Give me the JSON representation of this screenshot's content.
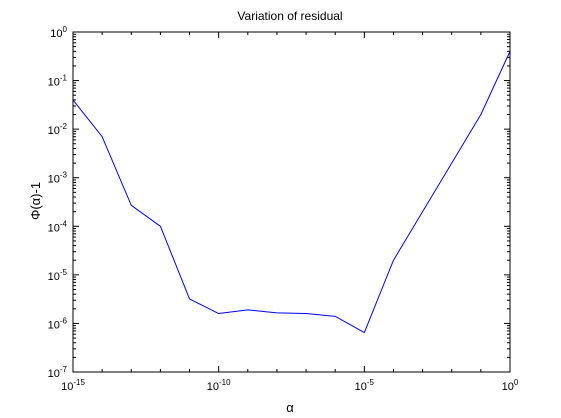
{
  "colors": {
    "background": "#ffffff",
    "axes": "#000000",
    "series_line": "#0000ff"
  },
  "chart_data": {
    "type": "line",
    "title": "Variation of residual",
    "xlabel": "α",
    "ylabel": "Φ(α)-1",
    "xscale": "log",
    "yscale": "log",
    "xlim": [
      1e-15,
      1
    ],
    "ylim": [
      1e-07,
      1
    ],
    "grid": false,
    "legend": "none",
    "x_ticks": [
      {
        "base": "10",
        "exp": "-15"
      },
      {
        "base": "10",
        "exp": "-10"
      },
      {
        "base": "10",
        "exp": "-5"
      },
      {
        "base": "10",
        "exp": "0"
      }
    ],
    "y_ticks": [
      {
        "base": "10",
        "exp": "-7"
      },
      {
        "base": "10",
        "exp": "-6"
      },
      {
        "base": "10",
        "exp": "-5"
      },
      {
        "base": "10",
        "exp": "-4"
      },
      {
        "base": "10",
        "exp": "-3"
      },
      {
        "base": "10",
        "exp": "-2"
      },
      {
        "base": "10",
        "exp": "-1"
      },
      {
        "base": "10",
        "exp": "0"
      }
    ],
    "series": [
      {
        "color": "#0000ff",
        "x": [
          1e-15,
          1e-14,
          1e-13,
          1e-12,
          1e-11,
          1e-10,
          1e-09,
          1e-08,
          1e-07,
          1e-06,
          1e-05,
          0.0001,
          0.001,
          0.01,
          0.1,
          1
        ],
        "y": [
          0.04,
          0.007,
          0.00027,
          0.0001,
          3.2e-06,
          1.6e-06,
          1.9e-06,
          1.65e-06,
          1.6e-06,
          1.4e-06,
          6.5e-07,
          2e-05,
          0.0002,
          0.002,
          0.02,
          0.4
        ]
      }
    ]
  }
}
